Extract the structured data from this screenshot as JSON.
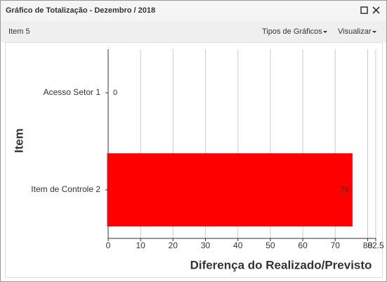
{
  "window": {
    "title": "Gráfico de Totalização - Dezembro / 2018"
  },
  "toolbar": {
    "item": "Item 5",
    "chart_types": "Tipos de Gráficos",
    "view": "Visualizar"
  },
  "chart_data": {
    "type": "bar",
    "orientation": "horizontal",
    "categories": [
      "Acesso Setor 1",
      "Item de Controle 2"
    ],
    "values": [
      0,
      75
    ],
    "colors": [
      "#33cc66",
      "#ff0000"
    ],
    "xlim": [
      0,
      82.5
    ],
    "xticks": [
      0,
      10,
      20,
      30,
      40,
      50,
      60,
      70,
      80,
      82.5
    ],
    "xlabel": "Diferença do Realizado/Previsto",
    "ylabel": "Item",
    "grid": true
  }
}
